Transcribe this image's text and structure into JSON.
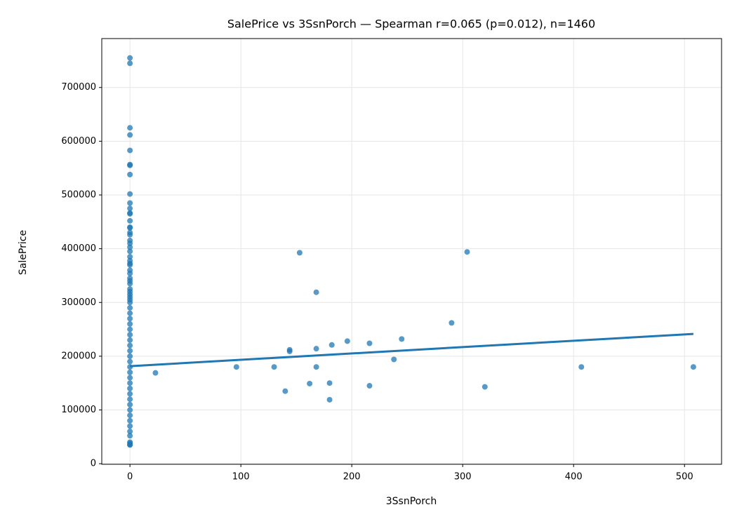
{
  "chart_data": {
    "type": "scatter",
    "title": "SalePrice vs 3SsnPorch — Spearman r=0.065 (p=0.012), n=1460",
    "x_label": "3SsnPorch",
    "y_label": "SalePrice",
    "xlim": [
      -25.4,
      533.4
    ],
    "ylim": [
      -1100,
      791000
    ],
    "xticks": [
      0,
      100,
      200,
      300,
      400,
      500
    ],
    "yticks": [
      0,
      100000,
      200000,
      300000,
      400000,
      500000,
      600000,
      700000
    ],
    "grid": true,
    "series": [
      {
        "color": "#1f77b4",
        "x": [
          0,
          0,
          0,
          0,
          0,
          0,
          0,
          0,
          0,
          0,
          0,
          0,
          0,
          0,
          0,
          0,
          0,
          0,
          0,
          0,
          0,
          0,
          0,
          0,
          0,
          0,
          0,
          0,
          0,
          0,
          0,
          0,
          0,
          0,
          0,
          0,
          0,
          0,
          0,
          0,
          0,
          0,
          0,
          0,
          0,
          0,
          0,
          0,
          0,
          0,
          0,
          0,
          0,
          0,
          0,
          0,
          0,
          0,
          0,
          0,
          0,
          0,
          0,
          0,
          0,
          0,
          23,
          96,
          130,
          140,
          144,
          144,
          153,
          162,
          168,
          168,
          168,
          180,
          180,
          182,
          196,
          216,
          216,
          238,
          245,
          290,
          304,
          320,
          407,
          508
        ],
        "values": [
          755000,
          745000,
          625000,
          611657,
          582933,
          556581,
          555000,
          538000,
          501837,
          485000,
          475000,
          466500,
          465000,
          451950,
          440000,
          438780,
          430000,
          426000,
          415298,
          410000,
          402861,
          395000,
          385000,
          377500,
          372500,
          369900,
          360000,
          354000,
          345000,
          340000,
          335000,
          325000,
          320000,
          315000,
          310000,
          305000,
          300000,
          290000,
          280000,
          270000,
          260000,
          250000,
          240000,
          230000,
          220000,
          210000,
          200000,
          190000,
          180000,
          170000,
          160000,
          150000,
          140000,
          130000,
          120000,
          110000,
          100000,
          90000,
          80000,
          70000,
          60000,
          52000,
          40000,
          37900,
          35311,
          34900,
          169000,
          180000,
          180000,
          135000,
          212000,
          209000,
          392500,
          149000,
          319000,
          214000,
          180000,
          150000,
          119000,
          221000,
          228000,
          224000,
          145000,
          194000,
          232000,
          262000,
          394000,
          143000,
          180000,
          180000
        ]
      }
    ],
    "regression": {
      "color": "#1f77b4",
      "x": [
        0,
        508
      ],
      "values": [
        181500,
        241500
      ]
    }
  }
}
